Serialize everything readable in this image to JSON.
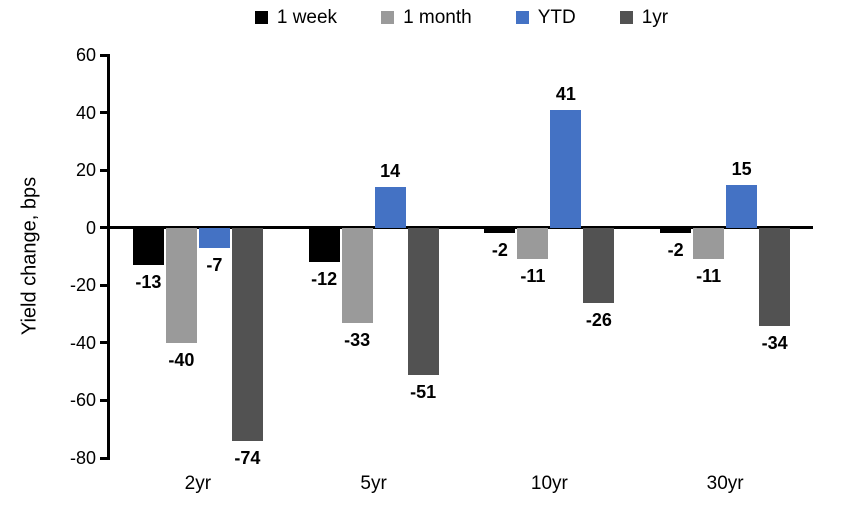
{
  "chart_data": {
    "type": "bar",
    "title": "",
    "xlabel": "",
    "ylabel": "Yield change, bps",
    "categories": [
      "2yr",
      "5yr",
      "10yr",
      "30yr"
    ],
    "series": [
      {
        "name": "1 week",
        "color": "#000000",
        "values": [
          -13,
          -12,
          -2,
          -2
        ]
      },
      {
        "name": "1 month",
        "color": "#9A9A9A",
        "values": [
          -40,
          -33,
          -11,
          -11
        ]
      },
      {
        "name": "YTD",
        "color": "#4472C4",
        "values": [
          -7,
          14,
          41,
          15
        ]
      },
      {
        "name": "1yr",
        "color": "#525252",
        "values": [
          -74,
          -51,
          -26,
          -34
        ]
      }
    ],
    "ylim": [
      -80,
      60
    ],
    "yticks": [
      60,
      40,
      20,
      0,
      -20,
      -40,
      -60,
      -80
    ],
    "ytick_step": 20,
    "legend_position": "top",
    "grid": false,
    "background": "#FFFFFF",
    "axis_color": "#000000"
  }
}
